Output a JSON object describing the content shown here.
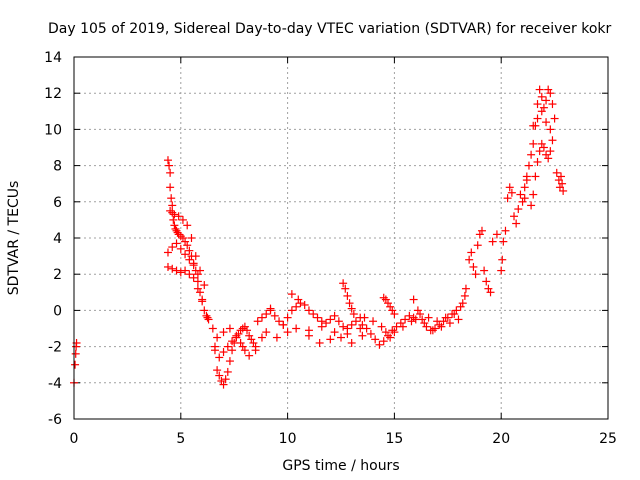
{
  "chart_data": {
    "type": "scatter",
    "title": "Day 105 of 2019, Sidereal Day-to-day VTEC variation (SDTVAR) for receiver kokr",
    "xlabel": "GPS time / hours",
    "ylabel": "SDTVAR / TECUs",
    "xlim": [
      0,
      25
    ],
    "ylim": [
      -6,
      14
    ],
    "xticks": [
      0,
      5,
      10,
      15,
      20,
      25
    ],
    "yticks": [
      -6,
      -4,
      -2,
      0,
      2,
      4,
      6,
      8,
      10,
      12,
      14
    ],
    "grid": true,
    "marker": "+",
    "color": "#ff0000",
    "series": [
      {
        "name": "SDTVAR",
        "x": [
          0.0,
          0.05,
          0.08,
          0.1,
          0.12,
          4.4,
          4.45,
          4.5,
          4.5,
          4.55,
          4.6,
          4.6,
          4.65,
          4.7,
          4.75,
          4.8,
          4.85,
          4.9,
          5.0,
          5.1,
          5.2,
          5.3,
          5.4,
          5.5,
          5.6,
          5.7,
          5.8,
          5.9,
          6.0,
          6.1,
          6.2,
          6.25,
          6.3,
          4.4,
          4.6,
          4.8,
          5.0,
          5.2,
          5.4,
          5.6,
          5.8,
          6.0,
          4.4,
          4.6,
          4.8,
          5.0,
          5.2,
          5.4,
          5.6,
          5.8,
          4.5,
          4.7,
          4.9,
          5.1,
          5.3,
          5.5,
          5.7,
          5.9,
          6.1,
          6.5,
          6.6,
          6.7,
          6.8,
          6.9,
          7.0,
          7.1,
          7.2,
          7.3,
          7.4,
          7.5,
          7.6,
          7.7,
          7.8,
          7.9,
          8.0,
          8.1,
          8.2,
          8.3,
          8.4,
          8.5,
          6.6,
          6.8,
          7.0,
          7.2,
          7.4,
          7.6,
          7.8,
          8.0,
          6.7,
          7.0,
          7.3,
          7.6,
          7.9,
          8.2,
          8.5,
          8.8,
          8.6,
          8.8,
          9.0,
          9.2,
          9.4,
          9.6,
          9.8,
          10.0,
          10.2,
          10.4,
          10.6,
          10.8,
          11.0,
          11.2,
          11.4,
          11.6,
          11.8,
          12.0,
          12.2,
          12.4,
          12.6,
          12.8,
          13.0,
          13.2,
          13.4,
          9.0,
          9.5,
          10.0,
          10.2,
          10.5,
          11.0,
          11.5,
          12.0,
          12.5,
          13.0,
          13.5,
          9.2,
          9.8,
          10.4,
          11.0,
          11.6,
          12.2,
          12.8,
          13.4,
          12.6,
          12.7,
          12.8,
          12.9,
          13.0,
          13.1,
          13.5,
          13.7,
          13.9,
          14.1,
          14.3,
          14.5,
          14.7,
          14.9,
          15.1,
          15.3,
          15.5,
          15.7,
          15.9,
          13.6,
          14.0,
          14.4,
          14.6,
          14.8,
          15.0,
          15.4,
          15.8,
          14.5,
          14.6,
          14.7,
          14.8,
          14.9,
          15.0,
          15.9,
          16.1,
          16.3,
          16.5,
          16.7,
          16.9,
          17.1,
          17.3,
          17.5,
          17.7,
          17.9,
          18.1,
          18.2,
          16.0,
          16.4,
          16.8,
          17.2,
          17.6,
          18.0,
          16.2,
          16.6,
          17.0,
          17.4,
          17.8,
          18.3,
          18.35,
          18.5,
          18.6,
          18.7,
          18.8,
          18.9,
          19.0,
          19.1,
          19.2,
          19.3,
          19.4,
          19.5,
          19.6,
          19.8,
          20.0,
          20.05,
          20.1,
          20.2,
          20.3,
          20.4,
          20.5,
          20.6,
          20.7,
          20.8,
          20.9,
          21.0,
          21.1,
          21.2,
          21.1,
          21.2,
          21.3,
          21.4,
          21.5,
          21.6,
          21.7,
          21.8,
          21.9,
          22.0,
          22.1,
          22.2,
          22.3,
          22.4,
          22.5,
          21.4,
          21.5,
          21.6,
          21.7,
          21.8,
          21.9,
          22.0,
          22.1,
          22.2,
          22.3,
          22.4,
          21.5,
          21.7,
          21.9,
          22.1,
          22.3,
          22.6,
          22.7,
          22.75,
          22.8,
          22.85,
          22.9
        ],
        "y": [
          -4.0,
          -3.0,
          -2.4,
          -2.0,
          -1.8,
          8.3,
          8.0,
          7.6,
          6.8,
          6.2,
          5.8,
          5.4,
          5.0,
          4.7,
          4.5,
          4.4,
          4.3,
          4.2,
          4.1,
          4.0,
          3.8,
          3.6,
          3.3,
          3.0,
          2.6,
          2.2,
          1.6,
          1.0,
          0.5,
          0.0,
          -0.3,
          -0.4,
          -0.5,
          2.4,
          2.3,
          2.2,
          2.1,
          2.2,
          2.0,
          1.8,
          1.2,
          0.6,
          3.2,
          3.5,
          3.7,
          3.4,
          3.1,
          2.8,
          2.5,
          2.0,
          5.5,
          5.3,
          5.2,
          5.0,
          4.7,
          4.0,
          3.0,
          2.2,
          1.4,
          -1.0,
          -2.0,
          -3.3,
          -3.6,
          -3.9,
          -4.1,
          -3.8,
          -3.4,
          -2.8,
          -2.2,
          -1.8,
          -1.5,
          -1.3,
          -1.1,
          -1.0,
          -0.9,
          -1.1,
          -1.4,
          -1.6,
          -1.8,
          -2.0,
          -2.2,
          -2.6,
          -2.3,
          -2.0,
          -1.7,
          -1.5,
          -1.8,
          -2.2,
          -1.5,
          -1.2,
          -1.0,
          -1.4,
          -2.0,
          -2.5,
          -2.2,
          -1.5,
          -0.6,
          -0.4,
          -0.2,
          0.0,
          -0.3,
          -0.6,
          -0.8,
          -0.4,
          0.0,
          0.2,
          0.4,
          0.3,
          0.0,
          -0.2,
          -0.4,
          -0.6,
          -0.7,
          -0.5,
          -0.3,
          -0.6,
          -0.9,
          -1.0,
          -0.8,
          -0.6,
          -0.4,
          -1.2,
          -1.5,
          -1.2,
          0.9,
          0.6,
          -1.4,
          -1.8,
          -1.6,
          -1.5,
          -1.8,
          -1.4,
          0.1,
          -0.8,
          -1.0,
          -1.1,
          -0.9,
          -1.2,
          -1.3,
          -1.0,
          1.5,
          1.2,
          0.8,
          0.4,
          0.1,
          -0.2,
          -0.8,
          -1.0,
          -1.3,
          -1.6,
          -1.9,
          -1.7,
          -1.4,
          -1.1,
          -0.9,
          -0.7,
          -0.5,
          -0.3,
          -0.4,
          -0.4,
          -0.6,
          -0.9,
          -1.2,
          -1.5,
          -1.2,
          -0.9,
          -0.6,
          0.7,
          0.6,
          0.4,
          0.2,
          0.0,
          -0.2,
          0.6,
          0.0,
          -0.5,
          -0.9,
          -1.1,
          -1.0,
          -0.8,
          -0.6,
          -0.4,
          -0.2,
          0.0,
          0.2,
          0.4,
          -0.5,
          -0.7,
          -1.1,
          -0.9,
          -0.7,
          -0.5,
          -0.2,
          -0.4,
          -0.6,
          -0.4,
          -0.2,
          0.8,
          1.2,
          2.8,
          3.2,
          2.4,
          2.0,
          3.6,
          4.2,
          4.4,
          2.2,
          1.6,
          1.2,
          1.0,
          3.8,
          4.2,
          2.2,
          2.8,
          3.8,
          4.4,
          6.2,
          6.8,
          6.5,
          5.2,
          4.8,
          5.6,
          6.4,
          6.0,
          6.8,
          7.4,
          6.2,
          7.2,
          8.0,
          8.6,
          9.2,
          10.2,
          11.4,
          12.2,
          11.8,
          11.2,
          11.6,
          12.2,
          12.0,
          11.4,
          10.6,
          5.8,
          6.4,
          7.4,
          8.2,
          8.8,
          9.2,
          9.0,
          8.6,
          8.4,
          8.8,
          9.4,
          10.2,
          10.6,
          11.0,
          10.4,
          10.0,
          7.6,
          7.2,
          6.8,
          7.4,
          7.0,
          6.6
        ]
      }
    ]
  }
}
